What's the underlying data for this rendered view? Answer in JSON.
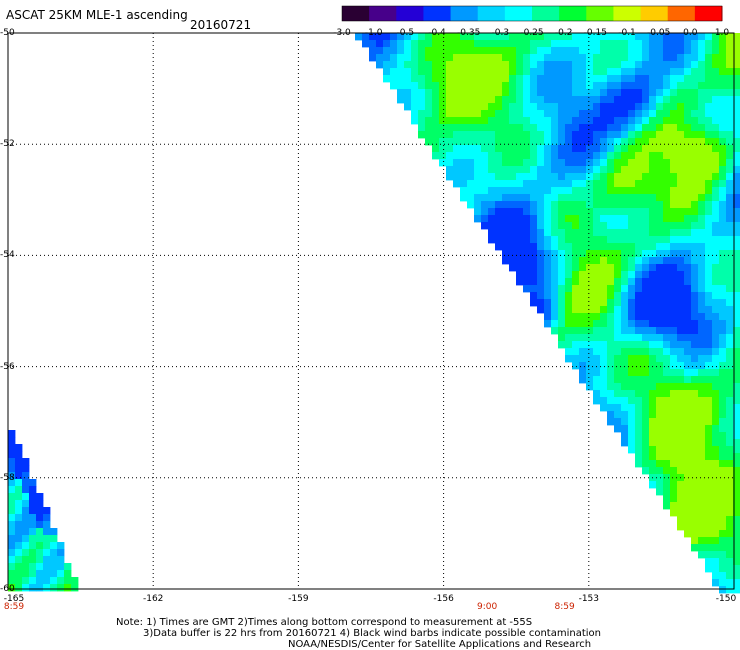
{
  "header": {
    "title": "ASCAT 25KM MLE-1 ascending",
    "date": "20160721"
  },
  "colorbar": {
    "labels": [
      "-3.0",
      "-1.0",
      "-0.5",
      "-0.4",
      "-0.35",
      "-0.3",
      "-0.25",
      "-0.2",
      "-0.15",
      "-0.1",
      "-0.05",
      "0.0",
      "1.0"
    ],
    "colors": [
      "#2a0033",
      "#47008a",
      "#2400d6",
      "#0033ff",
      "#0099ff",
      "#00d6ff",
      "#00ffff",
      "#00ff99",
      "#00ff33",
      "#66ff00",
      "#ccff00",
      "#ffcc00",
      "#ff6600",
      "#ff0000"
    ]
  },
  "map": {
    "lon_range": [
      -165,
      -150
    ],
    "lat_range": [
      -60,
      -50
    ],
    "y_labels": [
      "-50",
      "-52",
      "-54",
      "-56",
      "-58",
      "-60"
    ],
    "x_labels": [
      "-165",
      "-162",
      "-159",
      "-156",
      "-153",
      "-150"
    ],
    "time_labels": [
      {
        "text": "8:59",
        "lon": -165
      },
      {
        "text": "9:00",
        "lon": -155.1
      },
      {
        "text": "8:59",
        "lon": -153.5
      }
    ]
  },
  "notes": {
    "line1": "Note: 1) Times are GMT 2)Times along bottom correspond to measurement at -55S",
    "line2": "3)Data buffer is 22 hrs from 20160721 4) Black wind barbs indicate possible contamination",
    "line3": "NOAA/NESDIS/Center for Satellite Applications and Research"
  }
}
